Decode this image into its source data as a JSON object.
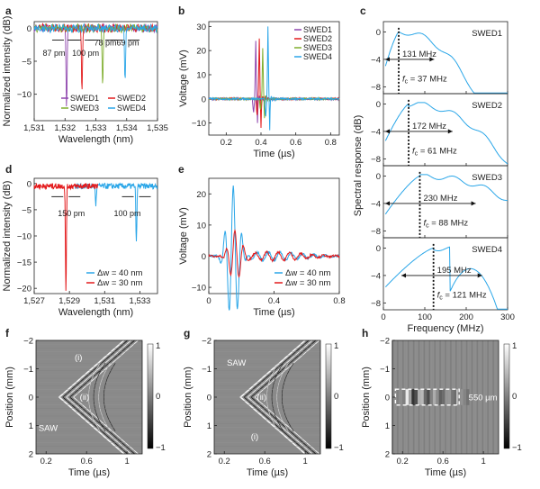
{
  "figure": {
    "panel_labels": [
      "a",
      "b",
      "c",
      "d",
      "e",
      "f",
      "g",
      "h"
    ]
  },
  "colors": {
    "swed1": "#8e44ad",
    "swed2": "#e31a1c",
    "swed3": "#7fae2e",
    "swed4": "#2aa6e8",
    "blue": "#2aa6e8",
    "red": "#e31a1c",
    "axis": "#222222"
  },
  "chart_data": [
    {
      "id": "a",
      "type": "line",
      "xlabel": "Wavelength (nm)",
      "ylabel": "Normalized intensity (dB)",
      "xlim": [
        1531,
        1535
      ],
      "ylim": [
        -14,
        1
      ],
      "xticks": [
        1531,
        1532,
        1533,
        1534,
        1535
      ],
      "xtick_labels": [
        "1,531",
        "1,532",
        "1,533",
        "1,534",
        "1,535"
      ],
      "yticks": [
        0,
        -5,
        -10
      ],
      "legend": [
        "SWED1",
        "SWED2",
        "SWED3",
        "SWED4"
      ],
      "legend_position": "bottom-right",
      "series": [
        {
          "name": "SWED1",
          "dips": [
            {
              "x": 1532.05,
              "depth": -12
            }
          ]
        },
        {
          "name": "SWED2",
          "dips": [
            {
              "x": 1532.55,
              "depth": -10
            }
          ]
        },
        {
          "name": "SWED3",
          "dips": [
            {
              "x": 1533.22,
              "depth": -9
            }
          ]
        },
        {
          "name": "SWED4",
          "dips": [
            {
              "x": 1533.95,
              "depth": -8
            }
          ]
        }
      ],
      "annotations": [
        {
          "text": "87 pm",
          "x": 1532.05
        },
        {
          "text": "100 pm",
          "x": 1532.55
        },
        {
          "text": "78 pm",
          "x": 1533.22
        },
        {
          "text": "69 pm",
          "x": 1533.95
        }
      ]
    },
    {
      "id": "b",
      "type": "line",
      "xlabel": "Time (µs)",
      "ylabel": "Voltage (mV)",
      "xlim": [
        0.1,
        0.85
      ],
      "ylim": [
        -15,
        32
      ],
      "xticks": [
        0.2,
        0.4,
        0.6,
        0.8
      ],
      "yticks": [
        30,
        20,
        10,
        0,
        -10
      ],
      "legend": [
        "SWED1",
        "SWED2",
        "SWED3",
        "SWED4"
      ],
      "legend_position": "top-right",
      "series": [
        {
          "name": "SWED1",
          "pulse_t": 0.37,
          "peak": 24,
          "trough": -10
        },
        {
          "name": "SWED2",
          "pulse_t": 0.39,
          "peak": 25,
          "trough": -12
        },
        {
          "name": "SWED3",
          "pulse_t": 0.41,
          "peak": 21,
          "trough": -8
        },
        {
          "name": "SWED4",
          "pulse_t": 0.44,
          "peak": 30,
          "trough": -13
        }
      ]
    },
    {
      "id": "c",
      "type": "line",
      "xlabel": "Frequency (MHz)",
      "ylabel": "Spectral response (dB)",
      "xlim": [
        0,
        300
      ],
      "ylim": [
        -9,
        1.5
      ],
      "xticks": [
        0,
        100,
        200,
        300
      ],
      "yticks": [
        0,
        -4,
        -8
      ],
      "subplots": [
        {
          "name": "SWED1",
          "fc": 37,
          "bw": 131,
          "bw_text": "131 MHz",
          "fc_text": "f",
          "fc_sub": "c",
          "fc_val": " = 37 MHz"
        },
        {
          "name": "SWED2",
          "fc": 61,
          "bw": 172,
          "bw_text": "172 MHz",
          "fc_text": "f",
          "fc_sub": "c",
          "fc_val": " = 61 MHz"
        },
        {
          "name": "SWED3",
          "fc": 88,
          "bw": 230,
          "bw_text": "230 MHz",
          "fc_text": "f",
          "fc_sub": "c",
          "fc_val": " = 88 MHz"
        },
        {
          "name": "SWED4",
          "fc": 121,
          "bw": 195,
          "bw_text": "195 MHz",
          "fc_text": "f",
          "fc_sub": "c",
          "fc_val": " = 121 MHz"
        }
      ]
    },
    {
      "id": "d",
      "type": "line",
      "xlabel": "Wavelength (nm)",
      "ylabel": "Normalized intensity (dB)",
      "xlim": [
        1527,
        1534
      ],
      "ylim": [
        -21,
        1
      ],
      "xticks": [
        1527,
        1529,
        1531,
        1533
      ],
      "xtick_labels": [
        "1,527",
        "1,529",
        "1,531",
        "1,533"
      ],
      "yticks": [
        0,
        -5,
        -10,
        -15,
        -20
      ],
      "legend": [
        "Δw = 40 nm",
        "Δw = 30 nm"
      ],
      "legend_position": "bottom-right",
      "series": [
        {
          "name": "Δw = 40 nm",
          "dips": [
            {
              "x": 1530.5,
              "depth": -3.5
            },
            {
              "x": 1532.8,
              "depth": -11
            }
          ]
        },
        {
          "name": "Δw = 30 nm",
          "dips": [
            {
              "x": 1528.8,
              "depth": -20
            }
          ]
        }
      ],
      "annotations": [
        {
          "text": "150 pm",
          "x": 1528.8
        },
        {
          "text": "100 pm",
          "x": 1532.8
        }
      ]
    },
    {
      "id": "e",
      "type": "line",
      "xlabel": "Time (µs)",
      "ylabel": "Voltage (mV)",
      "xlim": [
        0,
        0.8
      ],
      "ylim": [
        -12,
        25
      ],
      "xticks": [
        0,
        0.4,
        0.8
      ],
      "yticks": [
        20,
        10,
        0,
        -10
      ],
      "legend": [
        "Δw = 40 nm",
        "Δw = 30 nm"
      ],
      "legend_position": "bottom-right",
      "series": [
        {
          "name": "Δw = 40 nm",
          "center": 0.15,
          "amp": 22
        },
        {
          "name": "Δw = 30 nm",
          "center": 0.16,
          "amp": 8
        }
      ]
    },
    {
      "id": "f",
      "type": "heatmap",
      "xlabel": "Time (µs)",
      "ylabel": "Position (mm)",
      "xlim": [
        0.1,
        1.15
      ],
      "ylim": [
        -2,
        2
      ],
      "xticks": [
        0.2,
        0.6,
        1.0
      ],
      "yticks": [
        -2,
        -1,
        0,
        1,
        2
      ],
      "colorbar": {
        "ticks": [
          "1",
          "0",
          "−1"
        ]
      },
      "annotations": [
        {
          "text": "(i)",
          "t": 0.52,
          "pos": -1.4
        },
        {
          "text": "(ii)",
          "t": 0.58,
          "pos": 0.0
        },
        {
          "text": "SAW",
          "t": 0.22,
          "pos": 1.1
        }
      ]
    },
    {
      "id": "g",
      "type": "heatmap",
      "xlabel": "Time (µs)",
      "ylabel": "Position (mm)",
      "xlim": [
        0.1,
        1.15
      ],
      "ylim": [
        -2,
        2
      ],
      "xticks": [
        0.2,
        0.6,
        1.0
      ],
      "yticks": [
        -2,
        -1,
        0,
        1,
        2
      ],
      "colorbar": {
        "ticks": [
          "1",
          "0",
          "−1"
        ]
      },
      "annotations": [
        {
          "text": "SAW",
          "t": 0.32,
          "pos": -1.2
        },
        {
          "text": "(ii)",
          "t": 0.57,
          "pos": 0.0
        },
        {
          "text": "(i)",
          "t": 0.5,
          "pos": 1.4
        }
      ]
    },
    {
      "id": "h",
      "type": "heatmap",
      "xlabel": "Time (µs)",
      "ylabel": "Position (mm)",
      "xlim": [
        0.1,
        1.15
      ],
      "ylim": [
        -2,
        2
      ],
      "xticks": [
        0.2,
        0.6,
        1.0
      ],
      "yticks": [
        -2,
        -1,
        0,
        1,
        2
      ],
      "colorbar": {
        "ticks": [
          "1",
          "0",
          "−1"
        ]
      },
      "annotations": [
        {
          "text": "550 µm",
          "t": 0.8,
          "pos": 0.0
        }
      ]
    }
  ]
}
